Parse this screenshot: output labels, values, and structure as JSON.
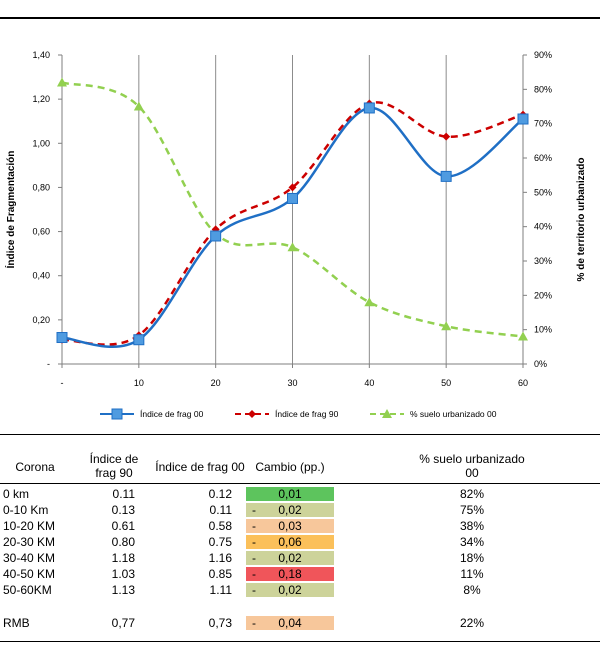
{
  "chart_data": {
    "type": "line",
    "categories": [
      "-",
      "10",
      "20",
      "30",
      "40",
      "50",
      "60"
    ],
    "ylabel_left": "Índice de Fragmentación",
    "ylabel_right": "% de territorio urbanizado",
    "yticks_left": [
      "-",
      "0,20",
      "0,40",
      "0,60",
      "0,80",
      "1,00",
      "1,20",
      "1,40"
    ],
    "yticks_right": [
      "0%",
      "10%",
      "20%",
      "30%",
      "40%",
      "50%",
      "60%",
      "70%",
      "80%",
      "90%"
    ],
    "ylim_left": [
      0,
      1.4
    ],
    "ylim_right": [
      0,
      0.9
    ],
    "grid": "vertical",
    "legend_position": "bottom",
    "series": [
      {
        "name": "Índice de frag 00",
        "axis": "left",
        "color": "#1f6fc5",
        "style": "solid",
        "marker": "square",
        "values": [
          0.12,
          0.11,
          0.58,
          0.75,
          1.16,
          0.85,
          1.11
        ]
      },
      {
        "name": "Índice de frag 90",
        "axis": "left",
        "color": "#cc0000",
        "style": "dashed",
        "marker": "diamond",
        "values": [
          0.11,
          0.13,
          0.61,
          0.8,
          1.18,
          1.03,
          1.13
        ]
      },
      {
        "name": "% suelo urbanizado 00",
        "axis": "right",
        "color": "#92d050",
        "style": "dashed",
        "marker": "triangle",
        "values": [
          0.82,
          0.75,
          0.38,
          0.34,
          0.18,
          0.11,
          0.08
        ]
      }
    ]
  },
  "table": {
    "headers": {
      "corona": "Corona",
      "f90": "Índice de frag 90",
      "f00": "Índice de frag 00",
      "cambio": "Cambio (pp.)",
      "suelo": "% suelo urbanizado 00"
    },
    "rows": [
      {
        "corona": "0 km",
        "f90": "0.11",
        "f00": "0.12",
        "sign": "",
        "cambio": "0,01",
        "suelo": "82%",
        "color": "#5dc45d"
      },
      {
        "corona": "0-10 Km",
        "f90": "0.13",
        "f00": "0.11",
        "sign": "-",
        "cambio": "0,02",
        "suelo": "75%",
        "color": "#cdd39a"
      },
      {
        "corona": "10-20 KM",
        "f90": "0.61",
        "f00": "0.58",
        "sign": "-",
        "cambio": "0,03",
        "suelo": "38%",
        "color": "#f7c79b"
      },
      {
        "corona": "20-30 KM",
        "f90": "0.80",
        "f00": "0.75",
        "sign": "-",
        "cambio": "0,06",
        "suelo": "34%",
        "color": "#fbc05a"
      },
      {
        "corona": "30-40 KM",
        "f90": "1.18",
        "f00": "1.16",
        "sign": "-",
        "cambio": "0,02",
        "suelo": "18%",
        "color": "#cdd39a"
      },
      {
        "corona": "40-50 KM",
        "f90": "1.03",
        "f00": "0.85",
        "sign": "-",
        "cambio": "0,18",
        "suelo": "11%",
        "color": "#f0555a"
      },
      {
        "corona": "50-60KM",
        "f90": "1.13",
        "f00": "1.11",
        "sign": "-",
        "cambio": "0,02",
        "suelo": "8%",
        "color": "#cdd39a"
      }
    ],
    "summary": {
      "corona": "RMB",
      "f90": "0,77",
      "f00": "0,73",
      "sign": "-",
      "cambio": "0,04",
      "suelo": "22%",
      "color": "#f7c79b"
    }
  }
}
